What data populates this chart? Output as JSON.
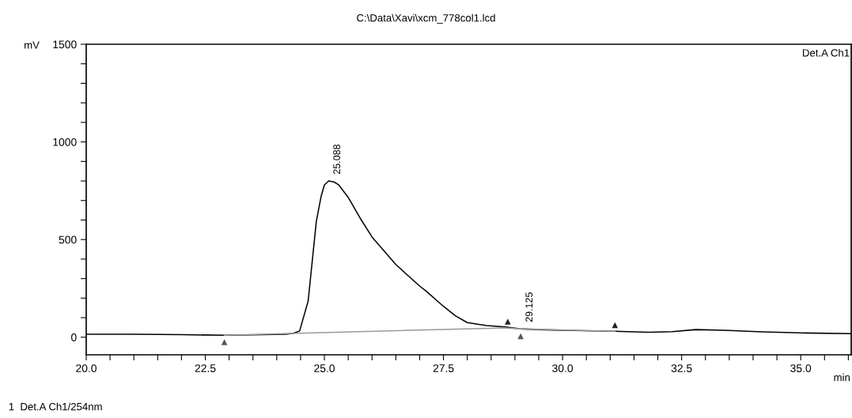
{
  "chart_data": {
    "type": "line",
    "title": "C:\\Data\\Xavi\\xcm_778col1.lcd",
    "xlabel": "min",
    "ylabel": "mV",
    "xlim": [
      20,
      36.06
    ],
    "ylim": [
      -90,
      1500
    ],
    "xticks": [
      {
        "value": 20,
        "label": "20.0"
      },
      {
        "value": 20.5,
        "label": null
      },
      {
        "value": 21.0,
        "label": null
      },
      {
        "value": 21.5,
        "label": null
      },
      {
        "value": 22.0,
        "label": null
      },
      {
        "value": 22.5,
        "label": "22.5"
      },
      {
        "value": 23.0,
        "label": null
      },
      {
        "value": 23.5,
        "label": null
      },
      {
        "value": 24.0,
        "label": null
      },
      {
        "value": 24.5,
        "label": null
      },
      {
        "value": 25.0,
        "label": "25.0"
      },
      {
        "value": 25.5,
        "label": null
      },
      {
        "value": 26.0,
        "label": null
      },
      {
        "value": 26.5,
        "label": null
      },
      {
        "value": 27.0,
        "label": null
      },
      27.5,
      {
        "value": 28.0,
        "label": null
      },
      {
        "value": 28.5,
        "label": null
      },
      {
        "value": 29.0,
        "label": null
      },
      {
        "value": 29.5,
        "label": null
      },
      {
        "value": 30.0,
        "label": "30.0"
      },
      {
        "value": 30.5,
        "label": null
      },
      {
        "value": 31.0,
        "label": null
      },
      {
        "value": 31.5,
        "label": null
      },
      {
        "value": 32.0,
        "label": null
      },
      32.5,
      {
        "value": 33.0,
        "label": null
      },
      {
        "value": 33.5,
        "label": null
      },
      {
        "value": 34.0,
        "label": null
      },
      {
        "value": 34.5,
        "label": null
      },
      {
        "value": 35.0,
        "label": "35.0"
      },
      {
        "value": 35.5,
        "label": null
      },
      {
        "value": 36.0,
        "label": null
      }
    ],
    "yticks": [
      0,
      {
        "value": 100,
        "label": null
      },
      {
        "value": 200,
        "label": null
      },
      {
        "value": 300,
        "label": null
      },
      {
        "value": 400,
        "label": null
      },
      500,
      {
        "value": 600,
        "label": null
      },
      {
        "value": 700,
        "label": null
      },
      {
        "value": 800,
        "label": null
      },
      {
        "value": 900,
        "label": null
      },
      1000,
      {
        "value": 1100,
        "label": null
      },
      {
        "value": 1200,
        "label": null
      },
      {
        "value": 1300,
        "label": null
      },
      {
        "value": 1400,
        "label": null
      },
      1500
    ],
    "grid": false,
    "legend": false,
    "series": [
      {
        "color": "#000000",
        "x": [
          20.0,
          21.0,
          22.0,
          22.9,
          23.5,
          24.2,
          24.35,
          24.48,
          24.66,
          24.83,
          24.93,
          25.0,
          25.09,
          25.2,
          25.3,
          25.5,
          25.75,
          26.0,
          26.5,
          27.0,
          27.14,
          27.5,
          27.75,
          28.0,
          28.4,
          28.8,
          29.1,
          29.6,
          30.2,
          31.1,
          31.8,
          32.3,
          32.8,
          33.4,
          34.2,
          35.0,
          36.06
        ],
        "values": [
          15,
          15,
          13,
          10,
          12,
          15,
          20,
          32,
          186,
          592,
          720,
          780,
          800,
          795,
          780,
          716,
          610,
          513,
          372,
          262,
          235,
          158,
          110,
          75,
          60,
          53,
          43,
          38,
          34,
          30,
          25,
          28,
          39,
          35,
          27,
          22,
          18
        ]
      },
      {
        "color": "#999999",
        "x": [
          22.9,
          28.8,
          29.1,
          31.1
        ],
        "values": [
          10,
          48,
          43,
          30
        ]
      },
      {
        "type": "scatter",
        "color": "#555555",
        "marker": "triangle",
        "x": [
          22.9,
          29.12
        ],
        "values": [
          -25,
          5
        ]
      },
      {
        "type": "scatter",
        "color": "#222222",
        "marker": "triangle",
        "x": [
          28.85,
          31.1
        ],
        "values": [
          80,
          62
        ]
      }
    ],
    "annotations": [
      {
        "text": "25.088",
        "x": 25.088,
        "y": 800
      },
      {
        "text": "29.125",
        "x": 29.125,
        "y": 43
      },
      "Det.A Ch1",
      "1  Det.A Ch1/254nm"
    ]
  }
}
